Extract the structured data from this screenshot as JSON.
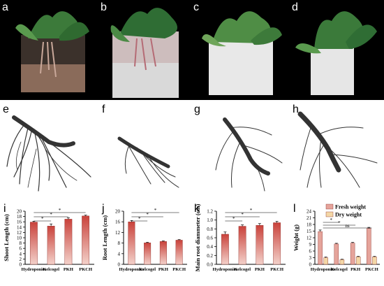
{
  "panels": {
    "photos": [
      {
        "letter": "a",
        "substrate": "hydroponics"
      },
      {
        "letter": "b",
        "substrate": "kelcogel"
      },
      {
        "letter": "c",
        "substrate": "pkh"
      },
      {
        "letter": "d",
        "substrate": "pkch"
      }
    ],
    "roots": [
      {
        "letter": "e"
      },
      {
        "letter": "f"
      },
      {
        "letter": "g"
      },
      {
        "letter": "h"
      }
    ]
  },
  "colors": {
    "bar_top": "#c9423b",
    "bar_bottom": "#f3d1ca",
    "fresh": "#e5a49b",
    "dry": "#f3d7a6",
    "root": "#333333"
  },
  "chart_data": [
    {
      "letter": "i",
      "type": "bar",
      "ylabel": "Shoot Length (cm)",
      "categories": [
        "Hydroponics",
        "Kelcogel",
        "PKH",
        "PKCH"
      ],
      "values": [
        15.9,
        14.4,
        17.0,
        18.2
      ],
      "errors": [
        0.3,
        0.8,
        0.5,
        0.3
      ],
      "ylim": [
        0,
        20
      ],
      "yticks": [
        "0",
        "2",
        "4",
        "6",
        "8",
        "10",
        "12",
        "14",
        "16",
        "18",
        "20"
      ],
      "significance": [
        {
          "from": 0,
          "to": 1,
          "mark": "*"
        },
        {
          "from": 0,
          "to": 2,
          "mark": "*"
        },
        {
          "from": 0,
          "to": 3,
          "mark": "*"
        }
      ]
    },
    {
      "letter": "j",
      "type": "bar",
      "ylabel": "Root Length (cm)",
      "categories": [
        "Hydroponics",
        "Kelcogel",
        "PKH",
        "PKCH"
      ],
      "values": [
        16.0,
        8.1,
        8.6,
        9.1
      ],
      "errors": [
        0.5,
        0.2,
        0.2,
        0.2
      ],
      "ylim": [
        0,
        20
      ],
      "yticks": [
        "0",
        "4",
        "8",
        "12",
        "16",
        "20"
      ],
      "significance": [
        {
          "from": 0,
          "to": 1,
          "mark": "*"
        },
        {
          "from": 0,
          "to": 2,
          "mark": "*"
        },
        {
          "from": 0,
          "to": 3,
          "mark": "*"
        }
      ]
    },
    {
      "letter": "k",
      "type": "bar",
      "ylabel": "Main root diammeter (cm)",
      "categories": [
        "Hydroponics",
        "Kelcogel",
        "PKH",
        "PKCH"
      ],
      "values": [
        0.68,
        0.86,
        0.88,
        0.94
      ],
      "errors": [
        0.05,
        0.03,
        0.04,
        0.03
      ],
      "ylim": [
        0,
        1.2
      ],
      "yticks": [
        "0.0",
        "0.2",
        "0.4",
        "0.6",
        "0.8",
        "1.0",
        "1.2"
      ],
      "significance": [
        {
          "from": 0,
          "to": 1,
          "mark": "*"
        },
        {
          "from": 0,
          "to": 2,
          "mark": "*"
        },
        {
          "from": 0,
          "to": 3,
          "mark": "*"
        }
      ]
    },
    {
      "letter": "l",
      "type": "bar",
      "ylabel": "Weight (g)",
      "categories": [
        "Hydroponics",
        "Kelcogel",
        "PKH",
        "PKCH"
      ],
      "series": [
        {
          "name": "Fresh weight",
          "values": [
            14.8,
            9.2,
            9.6,
            16.2
          ],
          "errors": [
            0.7,
            0.3,
            0.3,
            0.5
          ]
        },
        {
          "name": "Dry weight",
          "values": [
            3.0,
            2.1,
            3.4,
            3.4
          ],
          "errors": [
            0.3,
            0.2,
            0.2,
            0.2
          ]
        }
      ],
      "ylim": [
        0,
        24
      ],
      "yticks": [
        "0",
        "3",
        "6",
        "9",
        "12",
        "15",
        "18",
        "21",
        "24"
      ],
      "significance": [
        {
          "from": 0,
          "to": 1,
          "mark": "*"
        },
        {
          "from": 0,
          "to": 2,
          "mark": "*"
        },
        {
          "from": 0,
          "to": 3,
          "mark": "ns"
        }
      ]
    }
  ]
}
